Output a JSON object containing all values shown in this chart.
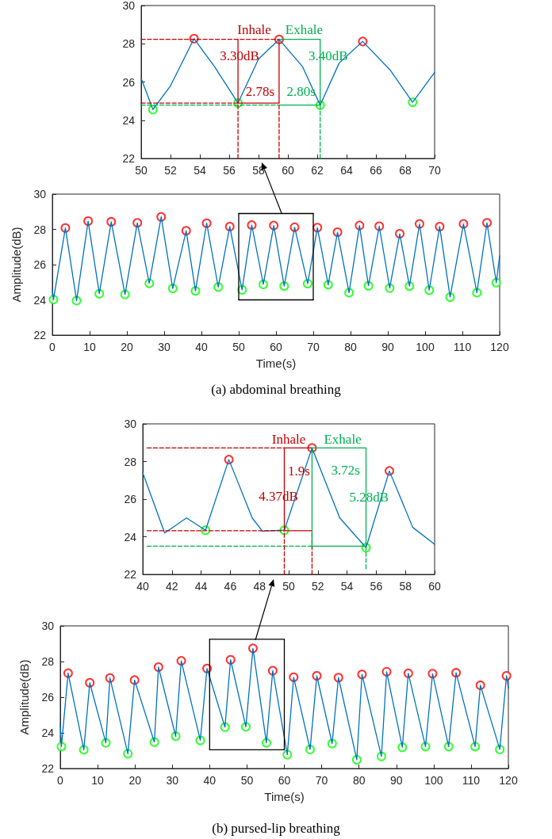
{
  "chart_data": [
    {
      "type": "line",
      "xlim": [
        50,
        70
      ],
      "xticks": [
        50,
        52,
        54,
        56,
        58,
        60,
        62,
        64,
        66,
        68,
        70
      ],
      "ylim": [
        22,
        30
      ],
      "yticks": [
        22,
        24,
        26,
        28,
        30
      ],
      "grid": false,
      "series": [
        {
          "color": "#0072bd",
          "x": [
            50,
            50.8,
            52,
            53.6,
            55,
            56.6,
            58,
            59.4,
            61,
            62.2,
            63.5,
            65.1,
            67,
            68.5,
            70
          ],
          "values": [
            26.2,
            24.56,
            25.8,
            28.27,
            26.8,
            24.9,
            27.2,
            28.23,
            26.8,
            24.79,
            27.0,
            28.12,
            26.6,
            24.94,
            26.5
          ]
        },
        {
          "color": "#c00000",
          "line_style": "dashed",
          "x": [
            50,
            59.4
          ],
          "values": [
            28.23,
            28.23
          ]
        },
        {
          "color": "#c00000",
          "line_style": "dashed",
          "x": [
            50,
            56.6
          ],
          "values": [
            24.9,
            24.9
          ]
        },
        {
          "color": "#00b050",
          "line_style": "dashed",
          "x": [
            50,
            59.4
          ],
          "values": [
            24.79,
            24.79
          ]
        },
        {
          "color": "#c00000",
          "line_style": "dashed",
          "x": [
            56.6,
            56.6
          ],
          "values": [
            22,
            24.9
          ]
        },
        {
          "color": "#c00000",
          "line_style": "dashed",
          "x": [
            59.4,
            59.4
          ],
          "values": [
            22,
            24.9
          ]
        },
        {
          "color": "#00b050",
          "line_style": "dashed",
          "x": [
            62.2,
            62.2
          ],
          "values": [
            22,
            24.79
          ]
        },
        {
          "color": "#c00000",
          "line_style": "solid",
          "x": [
            56.6,
            56.6
          ],
          "values": [
            24.9,
            28.23
          ]
        },
        {
          "color": "#c00000",
          "line_style": "solid",
          "x": [
            59.4,
            59.4
          ],
          "values": [
            24.9,
            28.23
          ]
        },
        {
          "color": "#c00000",
          "line_style": "solid",
          "x": [
            56.6,
            59.4
          ],
          "values": [
            24.9,
            24.9
          ]
        },
        {
          "color": "#00b050",
          "line_style": "solid",
          "x": [
            59.4,
            62.2
          ],
          "values": [
            28.23,
            28.23
          ]
        },
        {
          "color": "#00b050",
          "line_style": "solid",
          "x": [
            59.4,
            62.2
          ],
          "values": [
            24.79,
            24.79
          ]
        },
        {
          "color": "#00b050",
          "line_style": "solid",
          "x": [
            62.2,
            62.2
          ],
          "values": [
            24.79,
            28.23
          ]
        },
        {
          "type": "scatter",
          "marker": "circle",
          "color": "#ff0000",
          "x": [
            53.6,
            59.4,
            65.1
          ],
          "values": [
            28.27,
            28.23,
            28.12
          ]
        },
        {
          "type": "scatter",
          "marker": "circle",
          "color": "#00ff00",
          "x": [
            50.8,
            56.6,
            62.2,
            68.5
          ],
          "values": [
            24.56,
            24.9,
            24.79,
            24.94
          ]
        }
      ],
      "annotations": [
        "Inhale",
        "Exhale",
        "3.30dB",
        "3.40dB",
        "2.78s",
        "2.80s"
      ]
    },
    {
      "type": "line",
      "title": "(a) abdominal breathing",
      "xlabel": "Time(s)",
      "ylabel": "Amplitude(dB)",
      "xlim": [
        0,
        120
      ],
      "xticks": [
        0,
        10,
        20,
        30,
        40,
        50,
        60,
        70,
        80,
        90,
        100,
        110,
        120
      ],
      "ylim": [
        22,
        30
      ],
      "yticks": [
        22,
        24,
        26,
        28,
        30
      ],
      "grid": false,
      "series": [
        {
          "color": "#0072bd",
          "x": [
            0,
            0.3,
            3.5,
            6.5,
            9.6,
            12.6,
            15.8,
            19.5,
            22.8,
            26.0,
            29.2,
            32.3,
            35.9,
            38.4,
            41.4,
            44.5,
            47.6,
            50.9,
            53.5,
            56.6,
            59.4,
            62.2,
            65.0,
            68.5,
            71.1,
            74.0,
            76.5,
            79.6,
            82.4,
            84.8,
            87.7,
            90.5,
            93.2,
            95.8,
            98.5,
            101.1,
            103.9,
            106.7,
            110.3,
            113.9,
            116.6,
            119.1,
            120
          ],
          "values": [
            24.6,
            24.02,
            28.08,
            23.96,
            28.47,
            24.35,
            28.43,
            24.31,
            28.37,
            24.94,
            28.71,
            24.65,
            27.92,
            24.51,
            28.35,
            24.73,
            28.16,
            24.57,
            28.24,
            24.88,
            28.22,
            24.78,
            28.12,
            24.92,
            28.1,
            24.86,
            27.84,
            24.41,
            28.22,
            24.8,
            28.18,
            24.67,
            27.75,
            24.78,
            28.31,
            24.55,
            28.16,
            24.16,
            28.31,
            24.41,
            28.37,
            24.98,
            26.5
          ]
        },
        {
          "color": "#000000",
          "line_style": "solid",
          "x": [
            50,
            70
          ],
          "values": [
            28.9,
            28.9
          ]
        },
        {
          "color": "#000000",
          "line_style": "solid",
          "x": [
            50,
            70
          ],
          "values": [
            24,
            24
          ]
        },
        {
          "color": "#000000",
          "line_style": "solid",
          "x": [
            50,
            50
          ],
          "values": [
            24,
            28.9
          ]
        },
        {
          "color": "#000000",
          "line_style": "solid",
          "x": [
            70,
            70
          ],
          "values": [
            24,
            28.9
          ]
        },
        {
          "type": "scatter",
          "marker": "circle",
          "color": "#ff0000",
          "x": [
            3.5,
            9.6,
            15.8,
            22.8,
            29.2,
            35.9,
            41.4,
            47.6,
            53.5,
            59.4,
            65.0,
            71.1,
            76.5,
            82.4,
            87.7,
            93.2,
            98.5,
            103.9,
            110.3,
            116.6
          ],
          "values": [
            28.08,
            28.47,
            28.43,
            28.37,
            28.71,
            27.92,
            28.35,
            28.16,
            28.24,
            28.22,
            28.12,
            28.1,
            27.84,
            28.22,
            28.18,
            27.75,
            28.31,
            28.16,
            28.31,
            28.37
          ]
        },
        {
          "type": "scatter",
          "marker": "circle",
          "color": "#00ff00",
          "x": [
            0.3,
            6.5,
            12.6,
            19.5,
            26.0,
            32.3,
            38.4,
            44.5,
            50.9,
            56.6,
            62.2,
            68.5,
            74.0,
            79.6,
            84.8,
            90.5,
            95.8,
            101.1,
            106.7,
            113.9,
            119.1
          ],
          "values": [
            24.02,
            23.96,
            24.35,
            24.31,
            24.94,
            24.65,
            24.51,
            24.73,
            24.57,
            24.88,
            24.78,
            24.92,
            24.86,
            24.41,
            24.8,
            24.67,
            24.78,
            24.55,
            24.16,
            24.41,
            24.98
          ]
        }
      ]
    },
    {
      "type": "line",
      "xlim": [
        40,
        60
      ],
      "xticks": [
        40,
        42,
        44,
        46,
        48,
        50,
        52,
        54,
        56,
        58,
        60
      ],
      "ylim": [
        22,
        30
      ],
      "yticks": [
        22,
        24,
        26,
        28,
        30
      ],
      "grid": false,
      "series": [
        {
          "color": "#0072bd",
          "x": [
            40,
            41.5,
            43,
            44.3,
            45.9,
            47.5,
            48.2,
            49.7,
            51.6,
            53.5,
            55.3,
            56.9,
            58.5,
            60
          ],
          "values": [
            27.4,
            24.2,
            25.0,
            24.35,
            28.1,
            25.0,
            24.3,
            24.35,
            28.72,
            25.0,
            23.42,
            27.5,
            24.5,
            23.6
          ]
        },
        {
          "color": "#c00000",
          "line_style": "dashed",
          "x": [
            40.3,
            49.7
          ],
          "values": [
            28.72,
            28.72
          ]
        },
        {
          "color": "#c00000",
          "line_style": "dashed",
          "x": [
            40.3,
            49.7
          ],
          "values": [
            24.32,
            24.32
          ]
        },
        {
          "color": "#00b050",
          "line_style": "dashed",
          "x": [
            40.3,
            51.6
          ],
          "values": [
            23.5,
            23.5
          ]
        },
        {
          "color": "#c00000",
          "line_style": "dashed",
          "x": [
            49.7,
            49.7
          ],
          "values": [
            22,
            24.32
          ]
        },
        {
          "color": "#c00000",
          "line_style": "dashed",
          "x": [
            51.6,
            51.6
          ],
          "values": [
            22,
            24.32
          ]
        },
        {
          "color": "#00b050",
          "line_style": "dashed",
          "x": [
            55.3,
            55.3
          ],
          "values": [
            22.3,
            23.42
          ]
        },
        {
          "color": "#c00000",
          "line_style": "solid",
          "x": [
            49.7,
            51.6
          ],
          "values": [
            28.72,
            28.72
          ]
        },
        {
          "color": "#c00000",
          "line_style": "solid",
          "x": [
            49.7,
            51.6
          ],
          "values": [
            24.32,
            24.32
          ]
        },
        {
          "color": "#c00000",
          "line_style": "solid",
          "x": [
            49.7,
            49.7
          ],
          "values": [
            24.32,
            28.72
          ]
        },
        {
          "color": "#00b050",
          "line_style": "solid",
          "x": [
            51.6,
            55.3
          ],
          "values": [
            28.72,
            28.72
          ]
        },
        {
          "color": "#00b050",
          "line_style": "solid",
          "x": [
            51.6,
            55.3
          ],
          "values": [
            23.5,
            23.5
          ]
        },
        {
          "color": "#00b050",
          "line_style": "solid",
          "x": [
            51.6,
            51.6
          ],
          "values": [
            23.5,
            28.72
          ]
        },
        {
          "color": "#00b050",
          "line_style": "solid",
          "x": [
            55.3,
            55.3
          ],
          "values": [
            23.5,
            28.72
          ]
        },
        {
          "type": "scatter",
          "marker": "circle",
          "color": "#ff0000",
          "x": [
            45.9,
            51.6,
            56.9
          ],
          "values": [
            28.1,
            28.72,
            27.5
          ]
        },
        {
          "type": "scatter",
          "marker": "circle",
          "color": "#00ff00",
          "x": [
            44.3,
            49.7,
            55.3
          ],
          "values": [
            24.35,
            24.35,
            23.42
          ]
        }
      ],
      "annotations": [
        "Inhale",
        "Exhale",
        "1.9s",
        "3.72s",
        "4.37dB",
        "5.28dB"
      ]
    },
    {
      "type": "line",
      "title": "(b) pursed-lip breathing",
      "xlabel": "Time(s)",
      "ylabel": "Amplitude(dB)",
      "xlim": [
        0,
        120
      ],
      "xticks": [
        0,
        10,
        20,
        30,
        40,
        50,
        60,
        70,
        80,
        90,
        100,
        110,
        120
      ],
      "ylim": [
        22,
        30
      ],
      "yticks": [
        22,
        24,
        26,
        28,
        30
      ],
      "grid": false,
      "series": [
        {
          "color": "#0072bd",
          "x": [
            0,
            0.3,
            2.1,
            6.3,
            7.9,
            12.2,
            13.3,
            18.1,
            19.9,
            25.2,
            26.3,
            30.9,
            32.4,
            37.5,
            39.3,
            44.1,
            45.6,
            49.7,
            51.6,
            55.2,
            56.9,
            60.8,
            62.5,
            66.9,
            68.7,
            72.8,
            74.5,
            79.4,
            80.8,
            86.0,
            87.4,
            91.6,
            93.2,
            97.8,
            99.7,
            104.0,
            106.0,
            111.1,
            112.5,
            117.7,
            119.5,
            120
          ],
          "values": [
            24.5,
            23.23,
            27.35,
            23.05,
            26.81,
            23.44,
            27.08,
            22.83,
            26.96,
            23.48,
            27.69,
            23.81,
            28.04,
            23.58,
            27.61,
            24.32,
            28.1,
            24.34,
            28.74,
            23.44,
            27.49,
            22.78,
            27.12,
            23.07,
            27.2,
            23.4,
            27.1,
            22.49,
            27.28,
            22.68,
            27.43,
            23.19,
            27.34,
            23.23,
            27.32,
            23.23,
            27.37,
            23.23,
            26.67,
            23.07,
            27.2,
            26.5
          ]
        },
        {
          "color": "#000000",
          "line_style": "solid",
          "x": [
            40,
            60
          ],
          "values": [
            29.25,
            29.25
          ]
        },
        {
          "color": "#000000",
          "line_style": "solid",
          "x": [
            40,
            60
          ],
          "values": [
            23.05,
            23.05
          ]
        },
        {
          "color": "#000000",
          "line_style": "solid",
          "x": [
            40,
            40
          ],
          "values": [
            23.05,
            29.25
          ]
        },
        {
          "color": "#000000",
          "line_style": "solid",
          "x": [
            60,
            60
          ],
          "values": [
            23.05,
            29.25
          ]
        },
        {
          "type": "scatter",
          "marker": "circle",
          "color": "#ff0000",
          "x": [
            2.1,
            7.9,
            13.3,
            19.9,
            26.3,
            32.4,
            39.3,
            45.6,
            51.6,
            56.9,
            62.5,
            68.7,
            74.5,
            80.8,
            87.4,
            93.2,
            99.7,
            106.0,
            112.5,
            119.5
          ],
          "values": [
            27.35,
            26.81,
            27.08,
            26.96,
            27.69,
            28.04,
            27.61,
            28.1,
            28.74,
            27.49,
            27.12,
            27.2,
            27.1,
            27.28,
            27.43,
            27.34,
            27.32,
            27.37,
            26.67,
            27.2
          ]
        },
        {
          "type": "scatter",
          "marker": "circle",
          "color": "#00ff00",
          "x": [
            0.3,
            6.3,
            12.2,
            18.1,
            25.2,
            30.9,
            37.5,
            44.1,
            49.7,
            55.2,
            60.8,
            66.9,
            72.8,
            79.4,
            86.0,
            91.6,
            97.8,
            104.0,
            111.1,
            117.7
          ],
          "values": [
            23.23,
            23.05,
            23.44,
            22.83,
            23.48,
            23.81,
            23.58,
            24.32,
            24.34,
            23.44,
            22.78,
            23.07,
            23.4,
            22.49,
            22.68,
            23.19,
            23.23,
            23.23,
            23.23,
            23.07
          ]
        }
      ]
    }
  ]
}
